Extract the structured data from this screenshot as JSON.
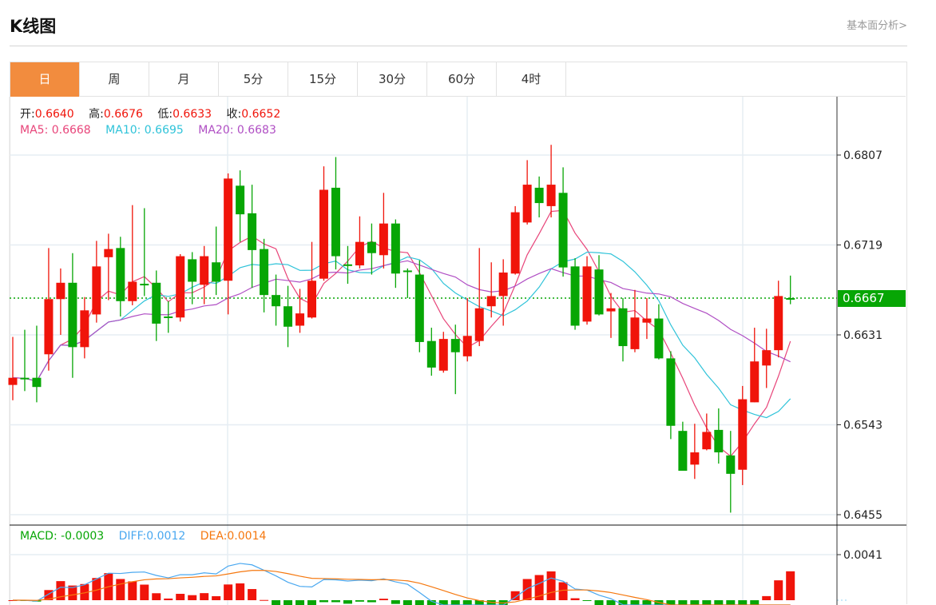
{
  "header": {
    "title": "K线图",
    "link": "基本面分析>"
  },
  "tabs": [
    {
      "label": "日",
      "active": true
    },
    {
      "label": "周"
    },
    {
      "label": "月"
    },
    {
      "label": "5分"
    },
    {
      "label": "15分"
    },
    {
      "label": "30分"
    },
    {
      "label": "60分"
    },
    {
      "label": "4时"
    }
  ],
  "ohlc_legend": {
    "open_label": "开:",
    "open": "0.6640",
    "high_label": "高:",
    "high": "0.6676",
    "low_label": "低:",
    "low": "0.6633",
    "close_label": "收:",
    "close": "0.6652"
  },
  "ma_legend": {
    "ma5": "MA5: 0.6668",
    "ma10": "MA10: 0.6695",
    "ma20": "MA20: 0.6683"
  },
  "macd_legend": {
    "macd": "MACD: -0.0003",
    "diff": "DIFF:0.0012",
    "dea": "DEA:0.0014"
  },
  "colors": {
    "up": "#f0140a",
    "down": "#07a605",
    "ma5": "#e8457a",
    "ma10": "#2fc3d9",
    "ma20": "#b04fc4",
    "diff": "#4aa8f0",
    "dea": "#f5780f",
    "tab_active": "#f28c3e"
  },
  "current_price": "0.6667",
  "chart_data": {
    "type": "candlestick",
    "y_ticks": [
      "0.6807",
      "0.6719",
      "0.6631",
      "0.6543",
      "0.6455"
    ],
    "ylim": [
      0.6455,
      0.6807
    ],
    "macd_ticks": [
      "0.0041"
    ],
    "ohlc": [
      [
        0.6582,
        0.6629,
        0.6567,
        0.6589
      ],
      [
        0.6589,
        0.6636,
        0.6576,
        0.6588
      ],
      [
        0.6589,
        0.664,
        0.6565,
        0.658
      ],
      [
        0.6612,
        0.6716,
        0.6596,
        0.6666
      ],
      [
        0.6666,
        0.6696,
        0.6631,
        0.6682
      ],
      [
        0.6682,
        0.6711,
        0.6589,
        0.6619
      ],
      [
        0.6619,
        0.6668,
        0.6608,
        0.6655
      ],
      [
        0.6651,
        0.6723,
        0.6643,
        0.6698
      ],
      [
        0.6707,
        0.673,
        0.6665,
        0.6715
      ],
      [
        0.6716,
        0.6727,
        0.6649,
        0.6664
      ],
      [
        0.6664,
        0.6758,
        0.666,
        0.6683
      ],
      [
        0.6681,
        0.6755,
        0.6669,
        0.668
      ],
      [
        0.6682,
        0.6694,
        0.6625,
        0.6642
      ],
      [
        0.6649,
        0.6664,
        0.6633,
        0.6648
      ],
      [
        0.6648,
        0.671,
        0.6644,
        0.6708
      ],
      [
        0.6705,
        0.6712,
        0.6661,
        0.6683
      ],
      [
        0.668,
        0.6718,
        0.6661,
        0.6708
      ],
      [
        0.6702,
        0.6737,
        0.667,
        0.6683
      ],
      [
        0.6684,
        0.6789,
        0.6651,
        0.6784
      ],
      [
        0.6777,
        0.6792,
        0.6722,
        0.6749
      ],
      [
        0.675,
        0.6778,
        0.6677,
        0.6714
      ],
      [
        0.6715,
        0.6725,
        0.6653,
        0.667
      ],
      [
        0.667,
        0.669,
        0.664,
        0.6659
      ],
      [
        0.6659,
        0.6679,
        0.6619,
        0.6639
      ],
      [
        0.664,
        0.6676,
        0.6633,
        0.6652
      ],
      [
        0.6648,
        0.6722,
        0.6647,
        0.6684
      ],
      [
        0.6686,
        0.6796,
        0.6684,
        0.6773
      ],
      [
        0.6775,
        0.6805,
        0.6695,
        0.6708
      ],
      [
        0.67,
        0.6718,
        0.6681,
        0.6699
      ],
      [
        0.6699,
        0.6747,
        0.6696,
        0.6722
      ],
      [
        0.6722,
        0.674,
        0.669,
        0.6711
      ],
      [
        0.6709,
        0.677,
        0.6696,
        0.674
      ],
      [
        0.674,
        0.6744,
        0.6677,
        0.6691
      ],
      [
        0.6694,
        0.6696,
        0.6667,
        0.6693
      ],
      [
        0.669,
        0.6704,
        0.6614,
        0.6624
      ],
      [
        0.6625,
        0.6638,
        0.6591,
        0.6599
      ],
      [
        0.6596,
        0.6634,
        0.6594,
        0.6627
      ],
      [
        0.6627,
        0.6641,
        0.6573,
        0.6614
      ],
      [
        0.661,
        0.6667,
        0.6605,
        0.663
      ],
      [
        0.6625,
        0.6716,
        0.662,
        0.6657
      ],
      [
        0.6659,
        0.6702,
        0.6648,
        0.6669
      ],
      [
        0.6669,
        0.6705,
        0.664,
        0.6692
      ],
      [
        0.6691,
        0.6757,
        0.669,
        0.6751
      ],
      [
        0.6741,
        0.6802,
        0.6739,
        0.6778
      ],
      [
        0.6775,
        0.6786,
        0.6746,
        0.676
      ],
      [
        0.6757,
        0.6817,
        0.6746,
        0.6778
      ],
      [
        0.677,
        0.6795,
        0.6688,
        0.6697
      ],
      [
        0.6698,
        0.6706,
        0.6636,
        0.664
      ],
      [
        0.6644,
        0.6708,
        0.6641,
        0.6698
      ],
      [
        0.6695,
        0.6709,
        0.665,
        0.6651
      ],
      [
        0.6654,
        0.6672,
        0.6628,
        0.6657
      ],
      [
        0.6657,
        0.6667,
        0.6605,
        0.662
      ],
      [
        0.6617,
        0.6675,
        0.6614,
        0.6648
      ],
      [
        0.6643,
        0.6667,
        0.6627,
        0.6647
      ],
      [
        0.6647,
        0.6661,
        0.6607,
        0.6608
      ],
      [
        0.6608,
        0.6615,
        0.6529,
        0.6542
      ],
      [
        0.6537,
        0.6546,
        0.6498,
        0.6498
      ],
      [
        0.6504,
        0.6544,
        0.649,
        0.6516
      ],
      [
        0.6519,
        0.6554,
        0.6518,
        0.6536
      ],
      [
        0.6538,
        0.6559,
        0.6505,
        0.6516
      ],
      [
        0.6513,
        0.6537,
        0.6457,
        0.6495
      ],
      [
        0.6499,
        0.6581,
        0.6484,
        0.6568
      ],
      [
        0.6565,
        0.6638,
        0.6565,
        0.6605
      ],
      [
        0.6601,
        0.6637,
        0.6579,
        0.6616
      ],
      [
        0.6616,
        0.6684,
        0.6609,
        0.6669
      ],
      [
        0.6667,
        0.6689,
        0.6661,
        0.6666
      ]
    ]
  }
}
